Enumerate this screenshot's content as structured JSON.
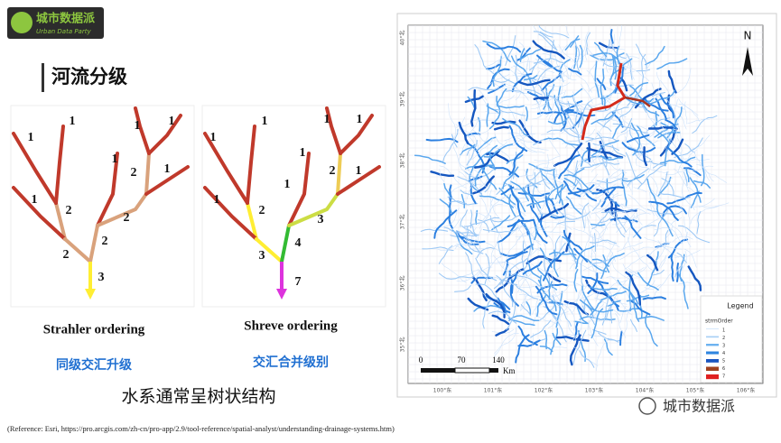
{
  "logo": {
    "name": "城市数据派",
    "subtitle": "Urban Data Party"
  },
  "heading": "河流分级",
  "diagrams": [
    {
      "labels": [
        "1",
        "1",
        "1",
        "1",
        "1",
        "1",
        "1",
        "2",
        "2",
        "2",
        "2",
        "2",
        "3"
      ],
      "caption": "Strahler ordering",
      "note": "同级交汇升级"
    },
    {
      "labels": [
        "1",
        "1",
        "1",
        "1",
        "1",
        "1",
        "1",
        "1",
        "2",
        "2",
        "3",
        "4",
        "3",
        "7"
      ],
      "caption": "Shreve ordering",
      "note": "交汇合并级别"
    }
  ],
  "summary": "水系通常呈树状结构",
  "reference": "(Reference: Esri, https://pro.arcgis.com/zh-cn/pro-app/2.9/tool-reference/spatial-analyst/understanding-drainage-systems.htm)",
  "map": {
    "north": "N",
    "lat_labels": [
      "40°北",
      "39°北",
      "38°北",
      "37°北",
      "36°北",
      "35°北"
    ],
    "lon_labels": [
      "100°东",
      "101°东",
      "102°东",
      "103°东",
      "104°东",
      "105°东",
      "106°东"
    ],
    "scale_labels": [
      "0",
      "70",
      "140"
    ],
    "scale_unit": "Km",
    "legend": {
      "title": "Legend",
      "field": "strmOrder",
      "items": [
        "1",
        "2",
        "3",
        "4",
        "5",
        "6",
        "7"
      ]
    }
  },
  "watermark": "城市数据派"
}
